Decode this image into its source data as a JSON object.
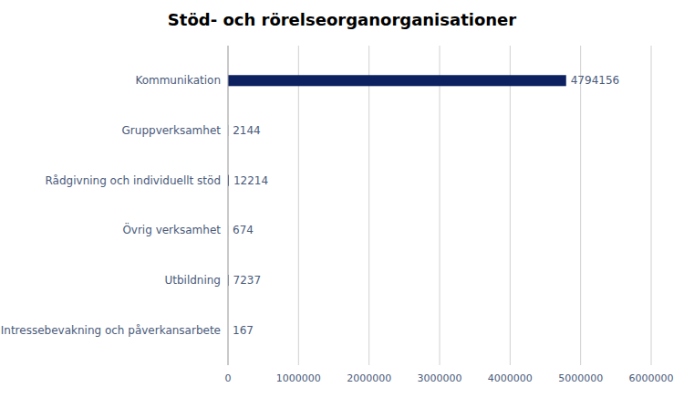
{
  "chart_data": {
    "type": "bar",
    "orientation": "horizontal",
    "title": "Stöd- och rörelseorganorganisationer",
    "categories": [
      "Intressebevakning och påverkansarbete",
      "Utbildning",
      "Övrig verksamhet",
      "Rådgivning och individuellt stöd",
      "Gruppverksamhet",
      "Kommunikation"
    ],
    "values": [
      167,
      7237,
      674,
      12214,
      2144,
      4794156
    ],
    "color": "#0d2060",
    "xlim": [
      0,
      6000000
    ],
    "xticks": [
      0,
      1000000,
      2000000,
      3000000,
      4000000,
      5000000,
      6000000
    ],
    "grid": true,
    "data_labels": true
  }
}
